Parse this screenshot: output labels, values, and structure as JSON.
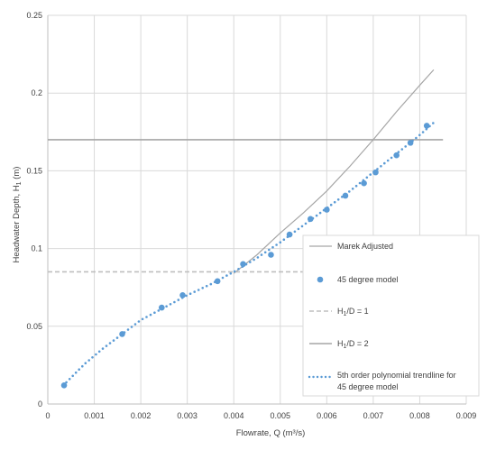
{
  "chart_data": {
    "type": "scatter",
    "xlabel": "Flowrate, Q (m³/s)",
    "ylabel_prefix": "Headwater Depth, H",
    "ylabel_sub": "1",
    "ylabel_suffix": " (m)",
    "xlim": [
      0,
      0.009
    ],
    "ylim": [
      0,
      0.25
    ],
    "x_ticks": [
      {
        "value": 0,
        "label": "0"
      },
      {
        "value": 0.001,
        "label": "0.001"
      },
      {
        "value": 0.002,
        "label": "0.002"
      },
      {
        "value": 0.003,
        "label": "0.003"
      },
      {
        "value": 0.004,
        "label": "0.004"
      },
      {
        "value": 0.005,
        "label": "0.005"
      },
      {
        "value": 0.006,
        "label": "0.006"
      },
      {
        "value": 0.007,
        "label": "0.007"
      },
      {
        "value": 0.008,
        "label": "0.008"
      },
      {
        "value": 0.009,
        "label": "0.009"
      }
    ],
    "y_ticks": [
      {
        "value": 0,
        "label": "0"
      },
      {
        "value": 0.05,
        "label": "0.05"
      },
      {
        "value": 0.1,
        "label": "0.1"
      },
      {
        "value": 0.15,
        "label": "0.15"
      },
      {
        "value": 0.2,
        "label": "0.2"
      },
      {
        "value": 0.25,
        "label": "0.25"
      }
    ],
    "grid": true,
    "legend_position": "right",
    "series": [
      {
        "name": "Marek Adjusted",
        "kind": "line",
        "color": "#a6a6a6",
        "points": [
          [
            0.004,
            0.084
          ],
          [
            0.0045,
            0.096
          ],
          [
            0.005,
            0.11
          ],
          [
            0.0055,
            0.123
          ],
          [
            0.006,
            0.137
          ],
          [
            0.0065,
            0.153
          ],
          [
            0.007,
            0.17
          ],
          [
            0.0075,
            0.188
          ],
          [
            0.008,
            0.205
          ],
          [
            0.0083,
            0.215
          ]
        ]
      },
      {
        "name": "45 degree model",
        "kind": "points",
        "color": "#5b9bd5",
        "points": [
          [
            0.00035,
            0.012
          ],
          [
            0.0016,
            0.045
          ],
          [
            0.00245,
            0.062
          ],
          [
            0.0029,
            0.07
          ],
          [
            0.00365,
            0.079
          ],
          [
            0.0042,
            0.09
          ],
          [
            0.0048,
            0.096
          ],
          [
            0.0052,
            0.109
          ],
          [
            0.00565,
            0.119
          ],
          [
            0.006,
            0.125
          ],
          [
            0.0064,
            0.134
          ],
          [
            0.0068,
            0.142
          ],
          [
            0.00705,
            0.149
          ],
          [
            0.0075,
            0.16
          ],
          [
            0.0078,
            0.168
          ],
          [
            0.00815,
            0.179
          ]
        ]
      },
      {
        "name_prefix": "H",
        "name_sub": "1",
        "name_suffix": "/D = 1",
        "kind": "hline",
        "style": "dashed",
        "color": "#bfbfbf",
        "y": 0.085,
        "x_range": [
          0,
          0.0057
        ]
      },
      {
        "name_prefix": "H",
        "name_sub": "1",
        "name_suffix": "/D = 2",
        "kind": "hline",
        "style": "solid",
        "color": "#a6a6a6",
        "y": 0.17,
        "x_range": [
          0,
          0.0085
        ]
      },
      {
        "name_line1": "5th order polynomial trendline for",
        "name_line2": "45 degree model",
        "kind": "trendline",
        "style": "dotted",
        "color": "#5b9bd5",
        "points": [
          [
            0.0004,
            0.014
          ],
          [
            0.0008,
            0.026
          ],
          [
            0.0012,
            0.036
          ],
          [
            0.0016,
            0.045
          ],
          [
            0.002,
            0.054
          ],
          [
            0.0025,
            0.062
          ],
          [
            0.003,
            0.07
          ],
          [
            0.0035,
            0.077
          ],
          [
            0.004,
            0.085
          ],
          [
            0.0045,
            0.094
          ],
          [
            0.005,
            0.104
          ],
          [
            0.0055,
            0.115
          ],
          [
            0.006,
            0.126
          ],
          [
            0.0065,
            0.137
          ],
          [
            0.007,
            0.149
          ],
          [
            0.0075,
            0.161
          ],
          [
            0.008,
            0.173
          ],
          [
            0.0083,
            0.181
          ]
        ]
      }
    ]
  }
}
